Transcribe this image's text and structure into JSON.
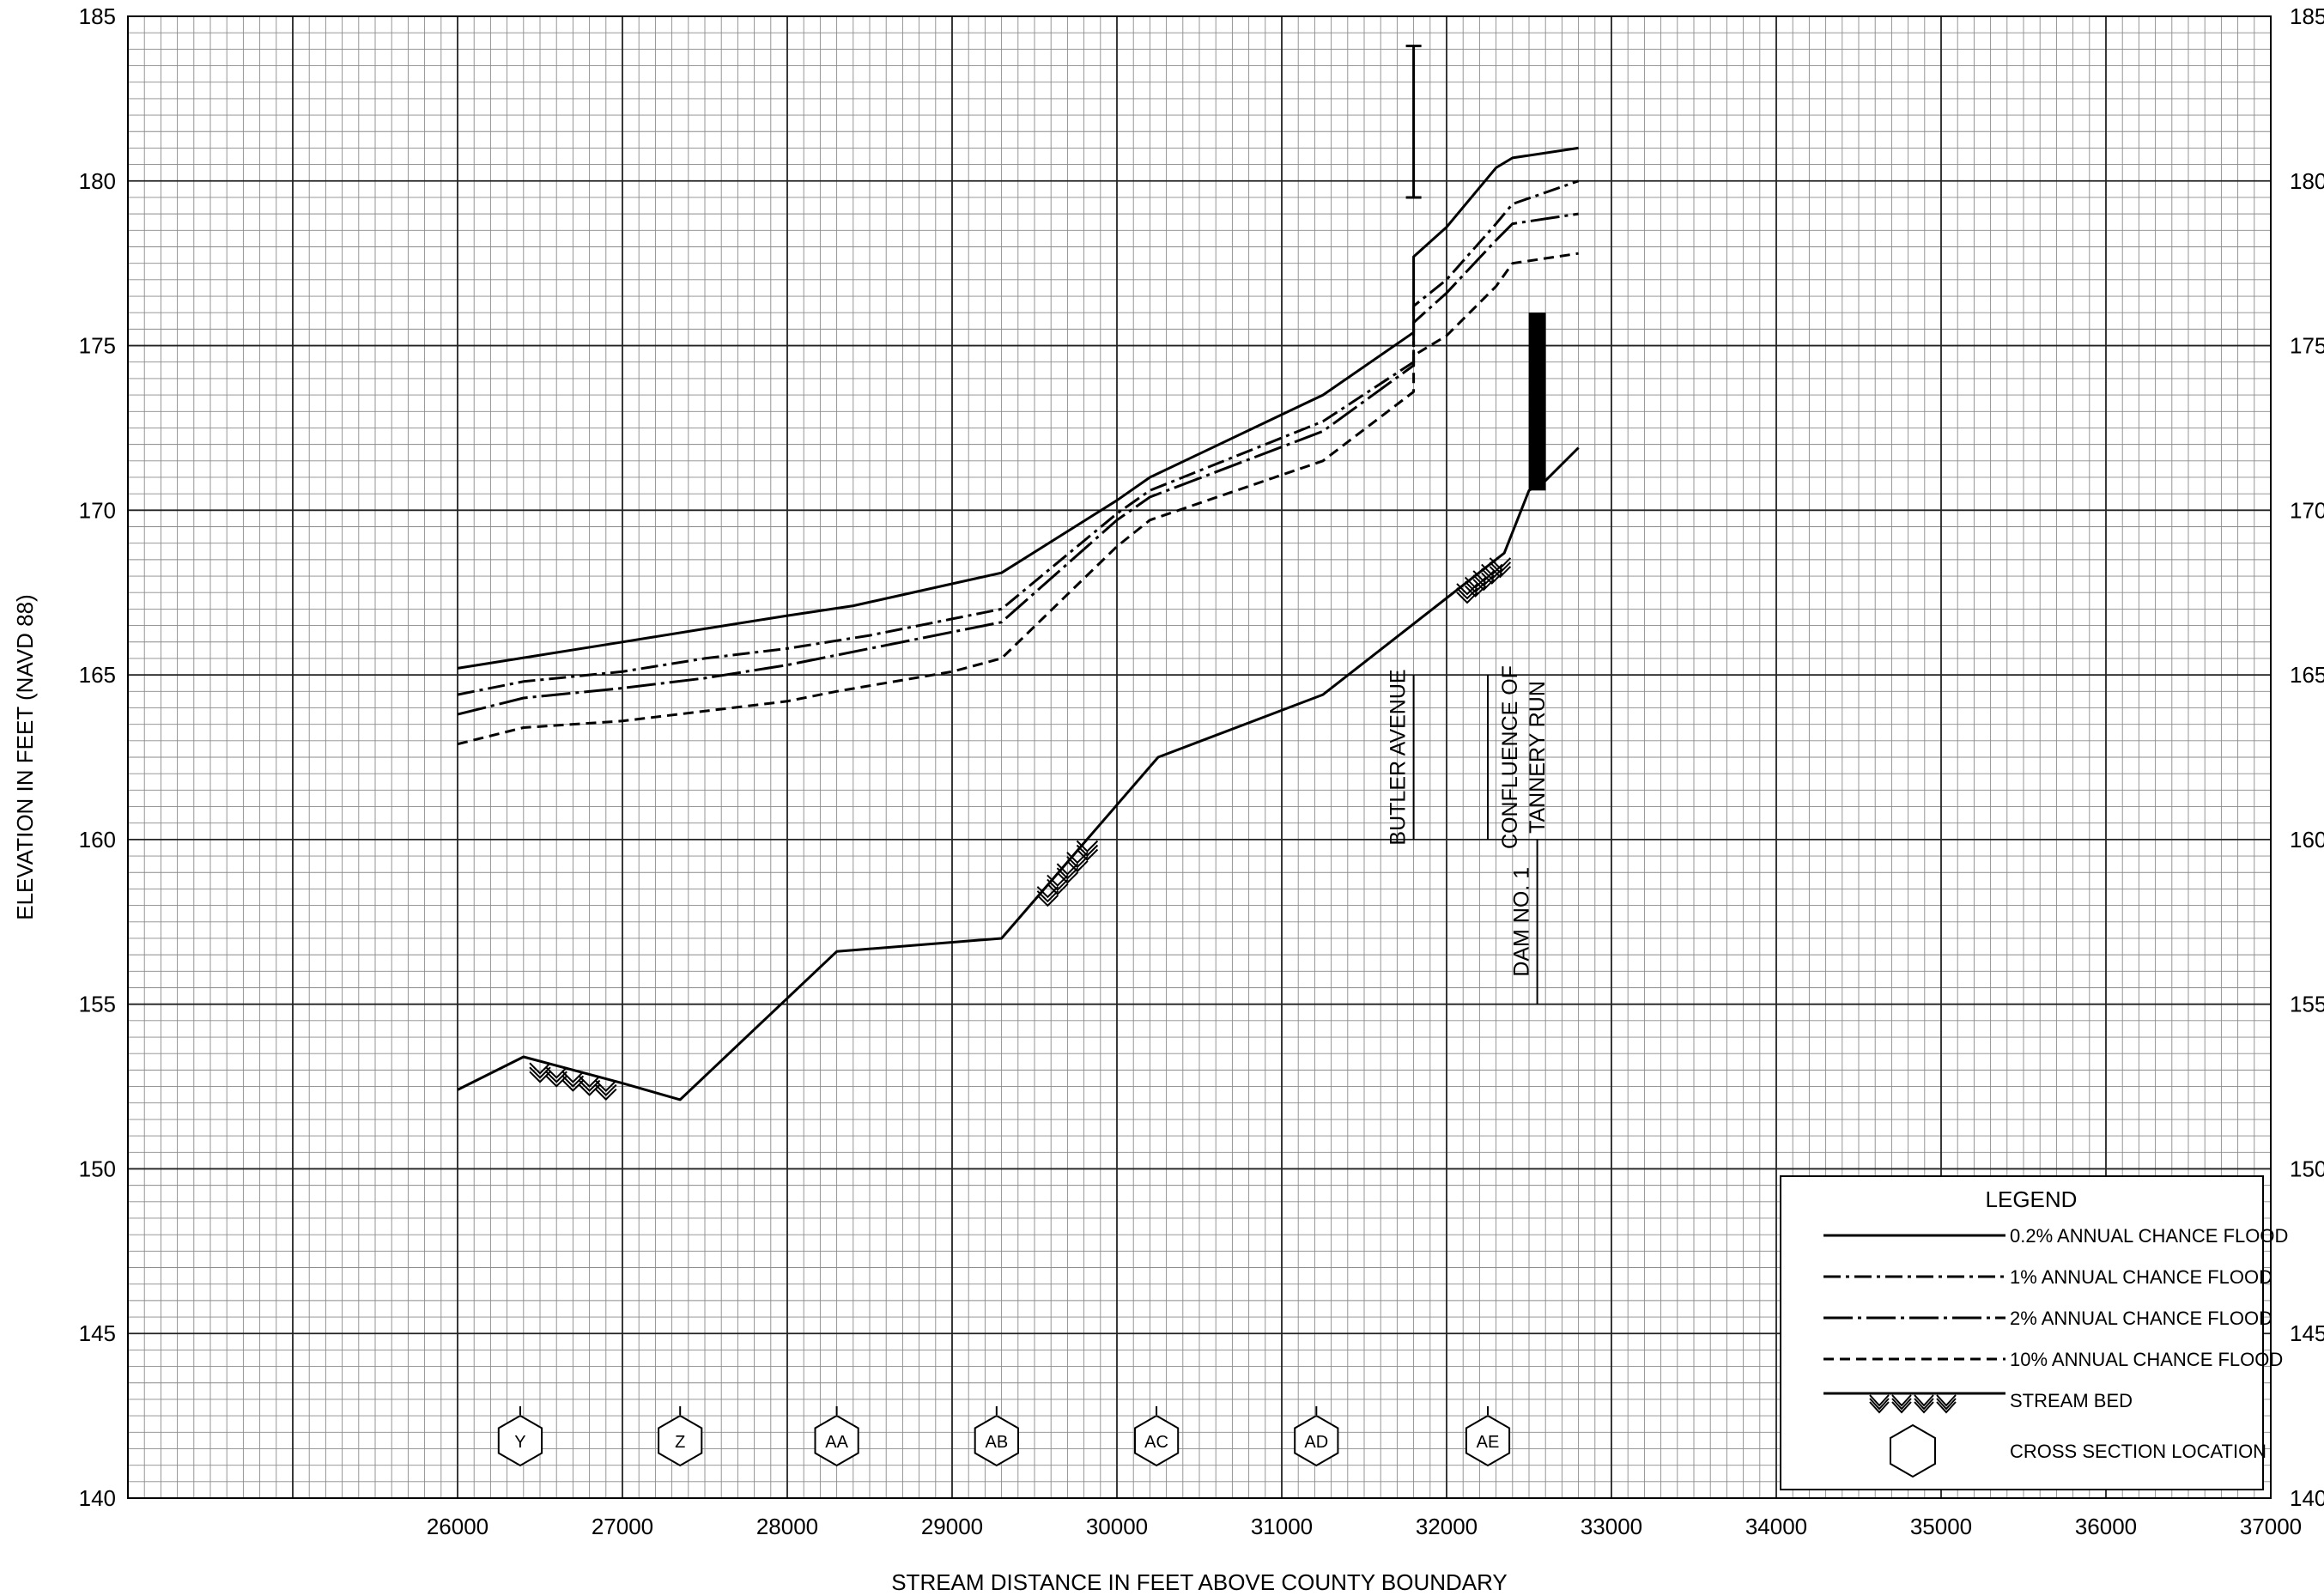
{
  "chart_data": {
    "type": "line",
    "xlabel": "STREAM DISTANCE IN FEET ABOVE COUNTY BOUNDARY",
    "ylabel": "ELEVATION IN FEET (NAVD 88)",
    "xlim": [
      24000,
      37000
    ],
    "ylim": [
      140,
      185
    ],
    "x_ticks": [
      26000,
      27000,
      28000,
      29000,
      30000,
      31000,
      32000,
      33000,
      34000,
      35000,
      36000,
      37000
    ],
    "x_tick_labels": [
      "26000",
      "27000",
      "28000",
      "29000",
      "30000",
      "31000",
      "32000",
      "33000",
      "34000",
      "35000",
      "36000",
      "37000"
    ],
    "y_ticks": [
      140,
      145,
      150,
      155,
      160,
      165,
      170,
      175,
      180,
      185
    ],
    "y_tick_labels": [
      "140",
      "145",
      "150",
      "155",
      "160",
      "165",
      "170",
      "175",
      "180",
      "185"
    ],
    "grid": true,
    "series": [
      {
        "name": "0.2% ANNUAL CHANCE FLOOD",
        "style": "solid",
        "points": [
          [
            26000,
            165.2
          ],
          [
            26500,
            165.6
          ],
          [
            27000,
            166.0
          ],
          [
            27500,
            166.4
          ],
          [
            28000,
            166.8
          ],
          [
            28400,
            167.1
          ],
          [
            29300,
            168.1
          ],
          [
            30000,
            170.3
          ],
          [
            30200,
            171.0
          ],
          [
            31250,
            173.5
          ],
          [
            31800,
            175.4
          ],
          [
            31800,
            177.7
          ],
          [
            32000,
            178.6
          ],
          [
            32300,
            180.4
          ],
          [
            32400,
            180.7
          ],
          [
            32800,
            181.0
          ]
        ]
      },
      {
        "name": "1% ANNUAL CHANCE FLOOD",
        "style": "dashdot",
        "points": [
          [
            26000,
            164.4
          ],
          [
            26400,
            164.8
          ],
          [
            27000,
            165.1
          ],
          [
            27500,
            165.5
          ],
          [
            28000,
            165.8
          ],
          [
            28500,
            166.2
          ],
          [
            29000,
            166.7
          ],
          [
            29300,
            167.0
          ],
          [
            30000,
            169.9
          ],
          [
            30200,
            170.6
          ],
          [
            31250,
            172.7
          ],
          [
            31800,
            174.5
          ],
          [
            31800,
            176.2
          ],
          [
            32000,
            177.0
          ],
          [
            32300,
            178.7
          ],
          [
            32400,
            179.3
          ],
          [
            32800,
            180.0
          ]
        ]
      },
      {
        "name": "2% ANNUAL CHANCE FLOOD",
        "style": "longdash-dot",
        "points": [
          [
            26000,
            163.8
          ],
          [
            26400,
            164.3
          ],
          [
            27000,
            164.6
          ],
          [
            27500,
            164.9
          ],
          [
            28000,
            165.3
          ],
          [
            28500,
            165.8
          ],
          [
            29000,
            166.3
          ],
          [
            29300,
            166.6
          ],
          [
            30000,
            169.7
          ],
          [
            30200,
            170.4
          ],
          [
            31250,
            172.4
          ],
          [
            31800,
            174.4
          ],
          [
            31800,
            175.7
          ],
          [
            32000,
            176.6
          ],
          [
            32300,
            178.2
          ],
          [
            32400,
            178.7
          ],
          [
            32800,
            179.0
          ]
        ]
      },
      {
        "name": "10% ANNUAL CHANCE FLOOD",
        "style": "dashed",
        "points": [
          [
            26000,
            162.9
          ],
          [
            26400,
            163.4
          ],
          [
            27000,
            163.6
          ],
          [
            27500,
            163.9
          ],
          [
            28000,
            164.2
          ],
          [
            28300,
            164.5
          ],
          [
            29000,
            165.1
          ],
          [
            29300,
            165.5
          ],
          [
            30000,
            168.9
          ],
          [
            30200,
            169.7
          ],
          [
            31250,
            171.5
          ],
          [
            31800,
            173.6
          ],
          [
            31800,
            174.7
          ],
          [
            32000,
            175.3
          ],
          [
            32300,
            176.8
          ],
          [
            32400,
            177.5
          ],
          [
            32800,
            177.8
          ]
        ]
      },
      {
        "name": "STREAM BED",
        "style": "streambed",
        "points": [
          [
            26000,
            152.4
          ],
          [
            26400,
            153.4
          ],
          [
            27000,
            152.6
          ],
          [
            27350,
            152.1
          ],
          [
            28300,
            156.6
          ],
          [
            29300,
            157.0
          ],
          [
            30250,
            162.5
          ],
          [
            31250,
            164.4
          ],
          [
            32350,
            168.7
          ],
          [
            32500,
            170.6
          ],
          [
            32600,
            170.9
          ],
          [
            32800,
            171.9
          ]
        ]
      }
    ],
    "streambed_hatch_segments": [
      [
        26450,
        26950
      ],
      [
        29550,
        29850
      ],
      [
        32100,
        32350
      ]
    ],
    "vertical_marker": {
      "x": 31800,
      "y_min": 179.5,
      "y_max": 184.1
    },
    "dam_bar": {
      "x": 32550,
      "y_min": 170.6,
      "y_max": 176.0
    },
    "annotations": [
      {
        "text": "BUTLER AVENUE",
        "x": 31800,
        "y_from": 160,
        "y_to": 165
      },
      {
        "text": "CONFLUENCE OF",
        "x": 32250,
        "y_from": 160,
        "y_to": 165
      },
      {
        "text": "TANNERY RUN",
        "x": 32250,
        "y_from": 160,
        "y_to": 165
      },
      {
        "text": "DAM NO. 1",
        "x": 32550,
        "y_from": 155,
        "y_to": 160
      }
    ],
    "cross_sections": [
      {
        "label": "Y",
        "x": 26380
      },
      {
        "label": "Z",
        "x": 27350
      },
      {
        "label": "AA",
        "x": 28300
      },
      {
        "label": "AB",
        "x": 29270
      },
      {
        "label": "AC",
        "x": 30240
      },
      {
        "label": "AD",
        "x": 31210
      },
      {
        "label": "AE",
        "x": 32250
      }
    ],
    "legend": {
      "title": "LEGEND",
      "position": "bottom-right",
      "entries": [
        {
          "label": "0.2% ANNUAL CHANCE FLOOD",
          "style": "solid"
        },
        {
          "label": "1% ANNUAL CHANCE FLOOD",
          "style": "dashdot"
        },
        {
          "label": "2% ANNUAL CHANCE FLOOD",
          "style": "longdash-dot"
        },
        {
          "label": "10% ANNUAL CHANCE FLOOD",
          "style": "dashed"
        },
        {
          "label": "STREAM BED",
          "style": "streambed"
        },
        {
          "label": "CROSS SECTION LOCATION",
          "style": "hexagon"
        }
      ]
    }
  }
}
